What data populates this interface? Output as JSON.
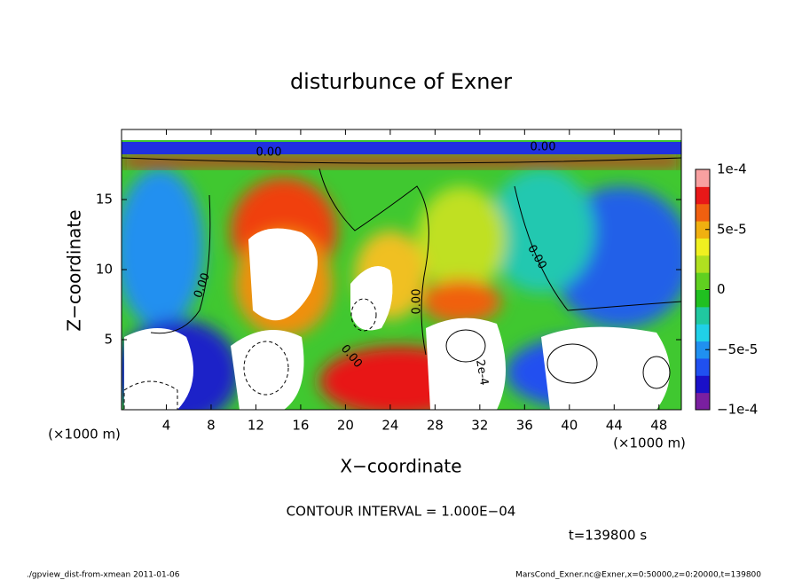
{
  "chart_data": {
    "type": "contour",
    "title": "disturbunce of Exner",
    "x_label": "X−coordinate",
    "y_label": "Z−coordinate",
    "x_unit": "(×1000 m)",
    "y_unit": "(×1000 m)",
    "xlim": [
      0,
      50
    ],
    "ylim": [
      0,
      20
    ],
    "xticks": [
      4,
      8,
      12,
      16,
      20,
      24,
      28,
      32,
      36,
      40,
      44,
      48
    ],
    "yticks": [
      5,
      10,
      15
    ],
    "clim": [
      -0.0001,
      0.0001
    ],
    "cticks": [
      {
        "value": -0.0001,
        "label": "−1e-4"
      },
      {
        "value": -5e-05,
        "label": "−5e-5"
      },
      0,
      {
        "value": 5e-05,
        "label": "5e-5"
      },
      {
        "value": 0.0001,
        "label": "1e-4"
      }
    ],
    "colormap": [
      "#7a1fa0",
      "#1a10c8",
      "#2050f0",
      "#2090f0",
      "#20d0e8",
      "#20c8a0",
      "#20c020",
      "#60d020",
      "#b0e020",
      "#f0f020",
      "#f0b010",
      "#f06010",
      "#e81818",
      "#f8a0a0"
    ],
    "contour_labels": [
      "0.00",
      "0.00",
      "0.00",
      "0.00",
      "0.00",
      "0.00",
      "2e-4"
    ],
    "contour_interval": "CONTOUR INTERVAL = 1.000E−04",
    "time_label": "t=139800 s",
    "footer_left": "./gpview_dist-from-xmean  2011-01-06",
    "footer_right": "MarsCond_Exner.nc@Exner,x=0:50000,z=0:20000,t=139800"
  }
}
